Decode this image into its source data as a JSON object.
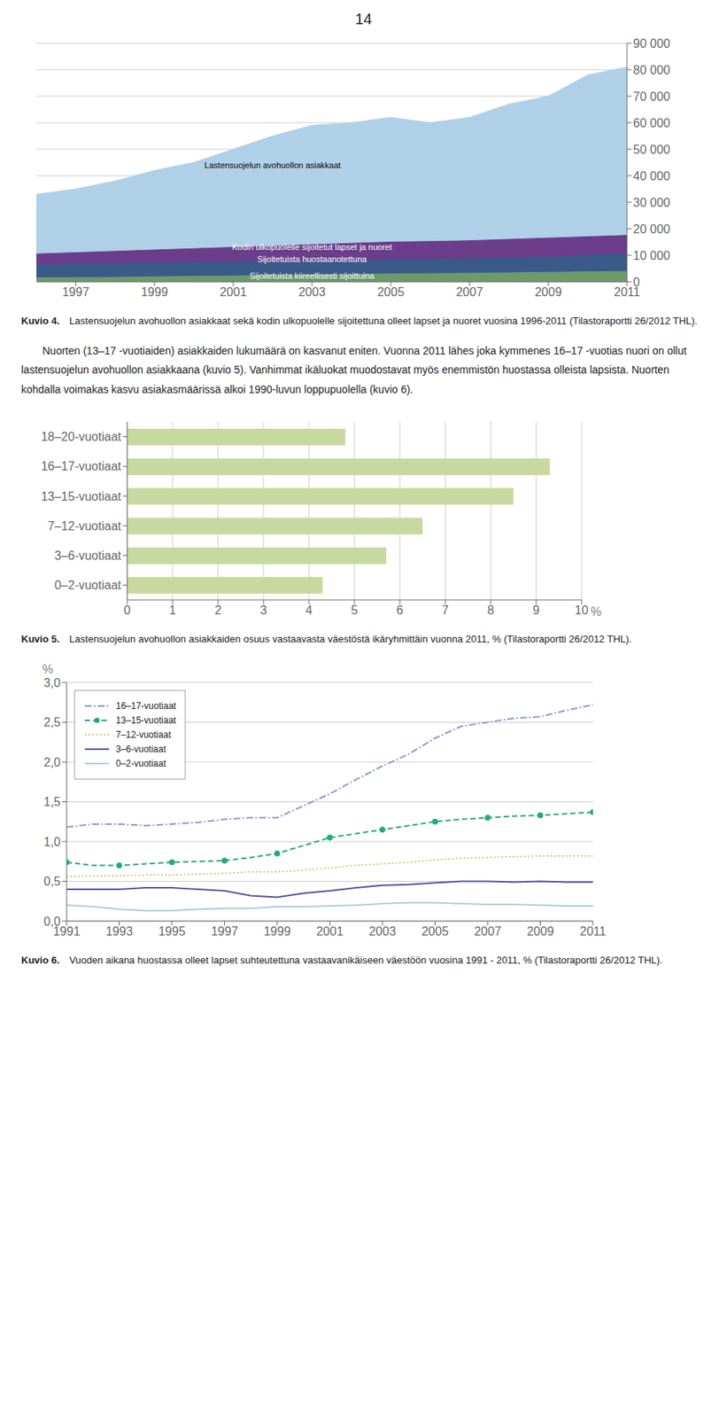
{
  "page_number": "14",
  "paragraph": "Nuorten (13–17 -vuotiaiden) asiakkaiden lukumäärä on kasvanut eniten. Vuonna 2011 lähes joka kymmenes 16–17 -vuotias nuori on ollut lastensuojelun avohuollon asiakkaana (kuvio 5). Vanhimmat ikäluokat muodostavat myös enemmistön huostassa olleista lapsista. Nuorten kohdalla voimakas kasvu asiakasmäärissä alkoi 1990-luvun loppupuolella (kuvio 6).",
  "chart_data": [
    {
      "type": "area",
      "title": "Kuvio 4.",
      "subtitle": "Lastensuojelun avohuollon asiakkaat sekä kodin ulkopuolelle sijoitettuna olleet lapset ja nuoret vuosina 1996-2011 (Tilastoraportti 26/2012 THL).",
      "x": [
        1996,
        1997,
        1998,
        1999,
        2000,
        2001,
        2002,
        2003,
        2004,
        2005,
        2006,
        2007,
        2008,
        2009,
        2010,
        2011
      ],
      "series": [
        {
          "name": "Lastensuojelun avohuollon asiakkaat",
          "color": "#b0d0e8",
          "values": [
            33000,
            35000,
            38000,
            42000,
            45000,
            50000,
            55000,
            59000,
            60000,
            62000,
            60000,
            62000,
            67000,
            70000,
            78000,
            81000
          ]
        },
        {
          "name": "Kodin ulkopuolelle sijoitetut lapset ja nuoret",
          "color": "#6b3d8b",
          "values": [
            10500,
            11000,
            11500,
            12000,
            12500,
            13000,
            13500,
            14000,
            14500,
            15000,
            15200,
            15500,
            16000,
            16500,
            17000,
            17500
          ]
        },
        {
          "name": "Sijoitetuista huostaanotettuna",
          "color": "#3a5a8a",
          "values": [
            6500,
            6700,
            6900,
            7100,
            7300,
            7500,
            7700,
            7900,
            8100,
            8300,
            8500,
            8700,
            9000,
            9300,
            10000,
            10535
          ]
        },
        {
          "name": "Sijoitetuista kiireellisesti sijoittuina",
          "color": "#6b9b6b",
          "values": [
            1500,
            1600,
            1700,
            1900,
            2100,
            2200,
            2400,
            2600,
            2800,
            3000,
            3100,
            3200,
            3400,
            3600,
            3800,
            3944
          ]
        }
      ],
      "annotations": [
        {
          "text": "Lastensuojelun avohuollon asiakkaat",
          "x": 2002,
          "y": 44000,
          "color": "#000000"
        },
        {
          "text": "Kodin ulkopuolelle sijoitetut lapset ja nuoret",
          "x": 2003,
          "y": 13200,
          "color": "#ffffff"
        },
        {
          "text": "Sijoitetuista huostaanotettuna",
          "x": 2003,
          "y": 8500,
          "color": "#ffffff"
        },
        {
          "text": "Sijoitetuista kiireellisesti sijoittuina",
          "x": 2003,
          "y": 2200,
          "color": "#ffffff"
        }
      ],
      "xlim": [
        1996,
        2011
      ],
      "xticks": [
        1997,
        1999,
        2001,
        2003,
        2005,
        2007,
        2009,
        2011
      ],
      "ylim": [
        0,
        90000
      ],
      "yticks": [
        0,
        {
          "value": 10000,
          "label": "10 000"
        },
        {
          "value": 20000,
          "label": "20 000"
        },
        {
          "value": 30000,
          "label": "30 000"
        },
        {
          "value": 40000,
          "label": "40 000"
        },
        {
          "value": 50000,
          "label": "50 000"
        },
        {
          "value": 60000,
          "label": "60 000"
        },
        {
          "value": 70000,
          "label": "70 000"
        },
        {
          "value": 80000,
          "label": "80 000"
        },
        {
          "value": 90000,
          "label": "90 000"
        }
      ],
      "grid": true
    },
    {
      "type": "bar",
      "orientation": "horizontal",
      "title": "Kuvio 5.",
      "subtitle": "Lastensuojelun avohuollon asiakkaiden osuus vastaavasta väestöstä ikäryhmittäin vuonna 2011, % (Tilastoraportti 26/2012 THL).",
      "categories": [
        "18–20-vuotiaat",
        "16–17-vuotiaat",
        "13–15-vuotiaat",
        "7–12-vuotiaat",
        "3–6-vuotiaat",
        "0–2-vuotiaat"
      ],
      "values": [
        4.8,
        9.3,
        8.5,
        6.5,
        5.7,
        4.3
      ],
      "color": "#c8d9a0",
      "xlim": [
        0,
        10
      ],
      "xticks": [
        0,
        1,
        2,
        3,
        4,
        5,
        6,
        7,
        8,
        9,
        10
      ],
      "annotations": [
        {
          "text": "%"
        }
      ],
      "grid": true
    },
    {
      "type": "line",
      "title": "Kuvio 6.",
      "subtitle": "Vuoden aikana huostassa olleet lapset suhteutettuna vastaavanikäiseen väestöön vuosina 1991 - 2011, % (Tilastoraportti 26/2012 THL).",
      "x": [
        1991,
        1992,
        1993,
        1994,
        1995,
        1996,
        1997,
        1998,
        1999,
        2000,
        2001,
        2002,
        2003,
        2004,
        2005,
        2006,
        2007,
        2008,
        2009,
        2010,
        2011
      ],
      "series": [
        {
          "name": "16–17-vuotiaat",
          "color": "#8899cc",
          "line_style": "dashdot",
          "values": [
            1.18,
            1.22,
            1.22,
            1.2,
            1.22,
            1.24,
            1.28,
            1.3,
            1.3,
            1.45,
            1.6,
            1.78,
            1.95,
            2.1,
            2.3,
            2.45,
            2.5,
            2.55,
            2.57,
            2.65,
            2.72
          ]
        },
        {
          "name": "13–15-vuotiaat",
          "color": "#22aa77",
          "line_style": "dashed",
          "marker": "circle",
          "values": [
            0.74,
            0.7,
            0.7,
            0.72,
            0.74,
            0.75,
            0.76,
            0.8,
            0.85,
            0.95,
            1.05,
            1.1,
            1.15,
            1.2,
            1.25,
            1.28,
            1.3,
            1.32,
            1.33,
            1.35,
            1.37
          ]
        },
        {
          "name": "7–12-vuotiaat",
          "color": "#c8c870",
          "line_style": "dotted",
          "values": [
            0.56,
            0.57,
            0.57,
            0.58,
            0.58,
            0.59,
            0.6,
            0.62,
            0.62,
            0.64,
            0.67,
            0.7,
            0.72,
            0.74,
            0.77,
            0.79,
            0.8,
            0.81,
            0.82,
            0.82,
            0.82
          ]
        },
        {
          "name": "3–6-vuotiaat",
          "color": "#5050a0",
          "line_style": "solid",
          "values": [
            0.4,
            0.4,
            0.4,
            0.42,
            0.42,
            0.4,
            0.38,
            0.32,
            0.3,
            0.35,
            0.38,
            0.42,
            0.45,
            0.46,
            0.48,
            0.5,
            0.5,
            0.49,
            0.5,
            0.49,
            0.49
          ]
        },
        {
          "name": "0–2-vuotiaat",
          "color": "#aaccdd",
          "line_style": "solid",
          "values": [
            0.2,
            0.18,
            0.15,
            0.13,
            0.13,
            0.15,
            0.16,
            0.16,
            0.18,
            0.18,
            0.19,
            0.2,
            0.22,
            0.23,
            0.23,
            0.22,
            0.21,
            0.21,
            0.2,
            0.19,
            0.19
          ]
        }
      ],
      "xlim": [
        1991,
        2011
      ],
      "xticks": [
        1991,
        1993,
        1995,
        1997,
        1999,
        2001,
        2003,
        2005,
        2007,
        2009,
        2011
      ],
      "ylim": [
        0.0,
        3.0
      ],
      "yticks": [
        {
          "value": 0.0,
          "label": "0,0"
        },
        {
          "value": 0.5,
          "label": "0,5"
        },
        {
          "value": 1.0,
          "label": "1,0"
        },
        {
          "value": 1.5,
          "label": "1,5"
        },
        {
          "value": 2.0,
          "label": "2,0"
        },
        {
          "value": 2.5,
          "label": "2,5"
        },
        {
          "value": 3.0,
          "label": "3,0"
        }
      ],
      "annotations": [
        {
          "text": "%"
        }
      ],
      "legend": "upper left",
      "grid": true
    }
  ]
}
